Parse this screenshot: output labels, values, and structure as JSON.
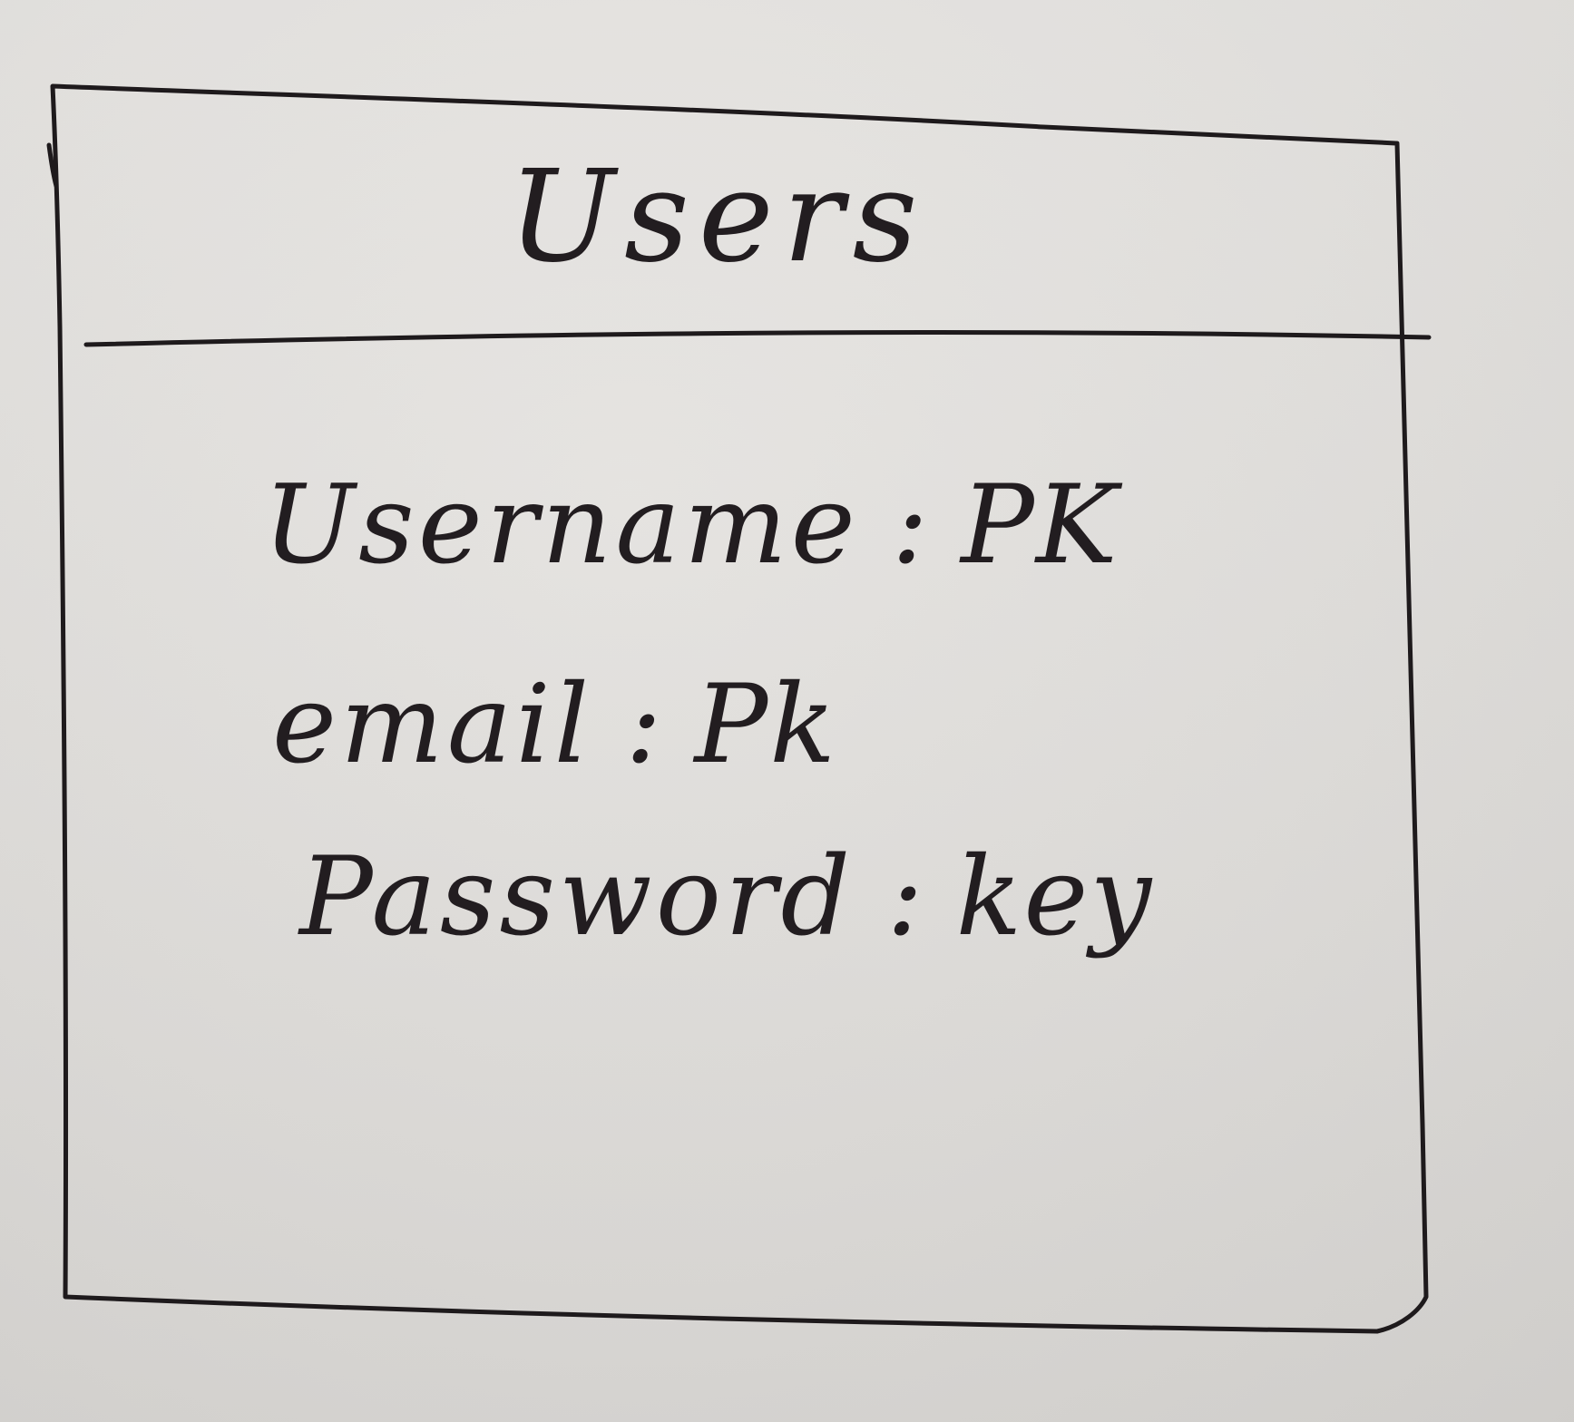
{
  "entity": {
    "title": "Users",
    "attributes": [
      {
        "name": "Username",
        "separator": ":",
        "key": "PK"
      },
      {
        "name": "email",
        "separator": ":",
        "key": "Pk"
      },
      {
        "name": "Password",
        "separator": ":",
        "key": "key"
      }
    ]
  },
  "colors": {
    "paper": "#dedcd9",
    "ink": "#1e1a1c"
  }
}
